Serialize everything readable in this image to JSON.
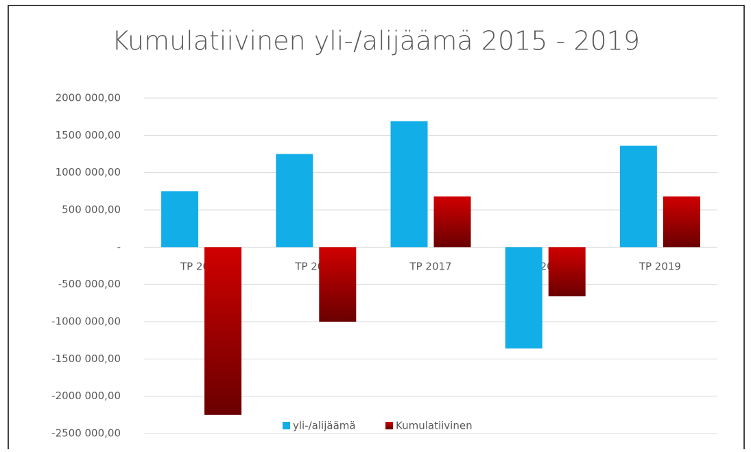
{
  "chart_data": {
    "type": "bar",
    "title": "Kumulatiivinen yli-/alijäämä 2015 - 2019",
    "categories": [
      "TP 2015",
      "TP 2016",
      "TP 2017",
      "TP 2018",
      "TP 2019"
    ],
    "series": [
      {
        "name": "yli-/alijäämä",
        "color": "#12aee8",
        "values": [
          750000,
          1250000,
          1690000,
          -1360000,
          1360000
        ]
      },
      {
        "name": "Kumulatiivinen",
        "color": "#d00000",
        "gradient_end": "#6a0000",
        "values": [
          -2250000,
          -1000000,
          680000,
          -660000,
          680000
        ]
      }
    ],
    "ylim": [
      -2500000,
      2000000
    ],
    "yticks": [
      {
        "value": 2000000,
        "label": "2000 000,00"
      },
      {
        "value": 1500000,
        "label": "1500 000,00"
      },
      {
        "value": 1000000,
        "label": "1000 000,00"
      },
      {
        "value": 500000,
        "label": "500 000,00"
      },
      {
        "value": 0,
        "label": "-"
      },
      {
        "value": -500000,
        "label": "-500 000,00"
      },
      {
        "value": -1000000,
        "label": "-1000 000,00"
      },
      {
        "value": -1500000,
        "label": "-1500 000,00"
      },
      {
        "value": -2000000,
        "label": "-2000 000,00"
      },
      {
        "value": -2500000,
        "label": "-2500 000,00"
      }
    ],
    "grid": true,
    "legend": "bottom"
  }
}
